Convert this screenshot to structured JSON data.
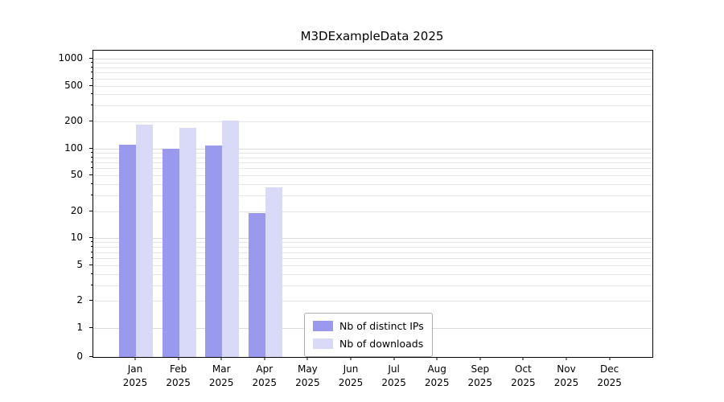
{
  "chart_data": {
    "type": "bar",
    "title": "M3DExampleData 2025",
    "year_label": "2025",
    "categories": [
      "Jan",
      "Feb",
      "Mar",
      "Apr",
      "May",
      "Jun",
      "Jul",
      "Aug",
      "Sep",
      "Oct",
      "Nov",
      "Dec"
    ],
    "series": [
      {
        "name": "Nb of distinct IPs",
        "color": "#9999ee",
        "values": [
          110,
          100,
          107,
          19,
          0,
          0,
          0,
          0,
          0,
          0,
          0,
          0
        ]
      },
      {
        "name": "Nb of downloads",
        "color": "#d9d9f8",
        "values": [
          185,
          170,
          203,
          37,
          0,
          0,
          0,
          0,
          0,
          0,
          0,
          0
        ]
      }
    ],
    "xlabel": "",
    "ylabel": "",
    "yscale": "symlog",
    "y_ticks": [
      0,
      1,
      2,
      5,
      10,
      20,
      50,
      100,
      200,
      500,
      1000
    ],
    "ylim": [
      0,
      1230
    ],
    "grid": "horizontal",
    "legend_position": "lower-center",
    "colors": {
      "axis": "#000000",
      "grid_major": "#dadada",
      "grid_minor": "#e6e6e6",
      "background": "#ffffff"
    }
  }
}
